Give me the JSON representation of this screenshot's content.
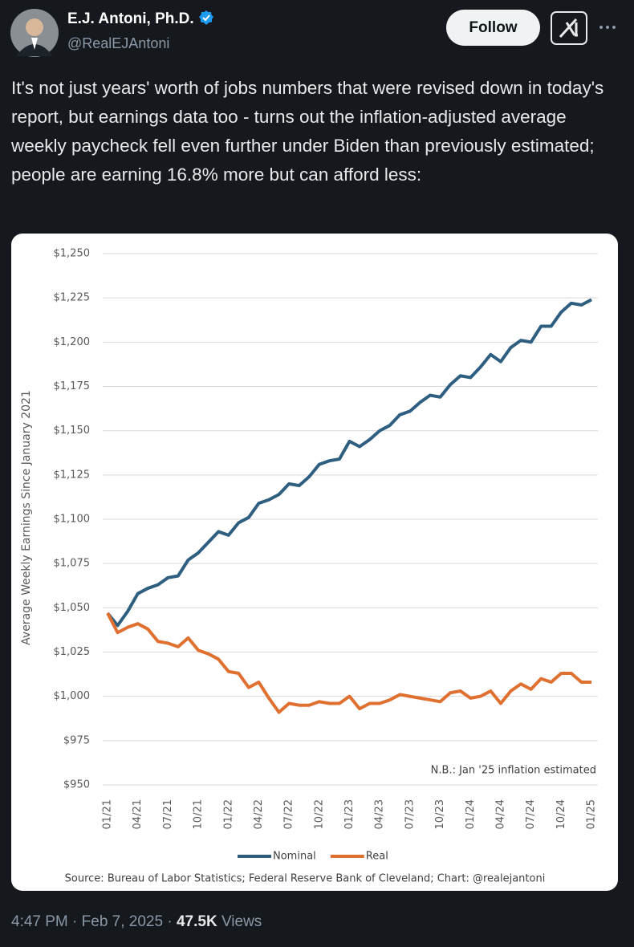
{
  "tweet": {
    "author": "E.J. Antoni, Ph.D.",
    "handle": "@RealEJAntoni",
    "follow": "Follow",
    "text": "It's not just years' worth of jobs numbers that were revised down in today's report, but earnings data too - turns out the inflation-adjusted average weekly paycheck fell even further under Biden than previously estimated; people are earning 16.8% more but can afford less:",
    "time": "4:47 PM",
    "separator": "·",
    "date": "Feb 7, 2025",
    "views": "47.5K",
    "views_label": "Views"
  },
  "chart_data": {
    "type": "line",
    "y_label": "Average Weekly Earnings Since January 2021",
    "annotation": "N.B.: Jan '25 inflation estimated",
    "source": "Source: Bureau of Labor Statistics; Federal Reserve Bank of Cleveland; Chart: @realejantoni",
    "categories": [
      "01/21",
      null,
      null,
      "04/21",
      null,
      null,
      "07/21",
      null,
      null,
      "10/21",
      null,
      null,
      "01/22",
      null,
      null,
      "04/22",
      null,
      null,
      "07/22",
      null,
      null,
      "10/22",
      null,
      null,
      "01/23",
      null,
      null,
      "04/23",
      null,
      null,
      "07/23",
      null,
      null,
      "10/23",
      null,
      null,
      "01/24",
      null,
      null,
      "04/24",
      null,
      null,
      "07/24",
      null,
      null,
      "10/24",
      null,
      null,
      "01/25"
    ],
    "series": [
      {
        "name": "Nominal",
        "color": "#2e5f80",
        "values": [
          1047,
          1040,
          1048,
          1058,
          1061,
          1063,
          1067,
          1068,
          1077,
          1081,
          1087,
          1093,
          1091,
          1098,
          1101,
          1109,
          1111,
          1114,
          1120,
          1119,
          1124,
          1131,
          1133,
          1134,
          1144,
          1141,
          1145,
          1150,
          1153,
          1159,
          1161,
          1166,
          1170,
          1169,
          1176,
          1181,
          1180,
          1186,
          1193,
          1189,
          1197,
          1201,
          1200,
          1209,
          1209,
          1217,
          1222,
          1221,
          1224
        ]
      },
      {
        "name": "Real",
        "color": "#e07030",
        "values": [
          1047,
          1036,
          1039,
          1041,
          1038,
          1031,
          1030,
          1028,
          1033,
          1026,
          1024,
          1021,
          1014,
          1013,
          1005,
          1008,
          999,
          991,
          996,
          995,
          995,
          997,
          996,
          996,
          1000,
          993,
          996,
          996,
          998,
          1001,
          1000,
          999,
          998,
          997,
          1002,
          1003,
          999,
          1000,
          1003,
          996,
          1003,
          1007,
          1004,
          1010,
          1008,
          1013,
          1013,
          1008,
          1008
        ]
      }
    ],
    "ylim": [
      950,
      1250
    ],
    "yticks": [
      {
        "value": 950,
        "label": "$950"
      },
      {
        "value": 975,
        "label": "$975"
      },
      {
        "value": 1000,
        "label": "$1,000"
      },
      {
        "value": 1025,
        "label": "$1,025"
      },
      {
        "value": 1050,
        "label": "$1,050"
      },
      {
        "value": 1075,
        "label": "$1,075"
      },
      {
        "value": 1100,
        "label": "$1,100"
      },
      {
        "value": 1125,
        "label": "$1,125"
      },
      {
        "value": 1150,
        "label": "$1,150"
      },
      {
        "value": 1175,
        "label": "$1,175"
      },
      {
        "value": 1200,
        "label": "$1,200"
      },
      {
        "value": 1225,
        "label": "$1,225"
      },
      {
        "value": 1250,
        "label": "$1,250"
      }
    ],
    "grid": true,
    "legend": "bottom"
  }
}
